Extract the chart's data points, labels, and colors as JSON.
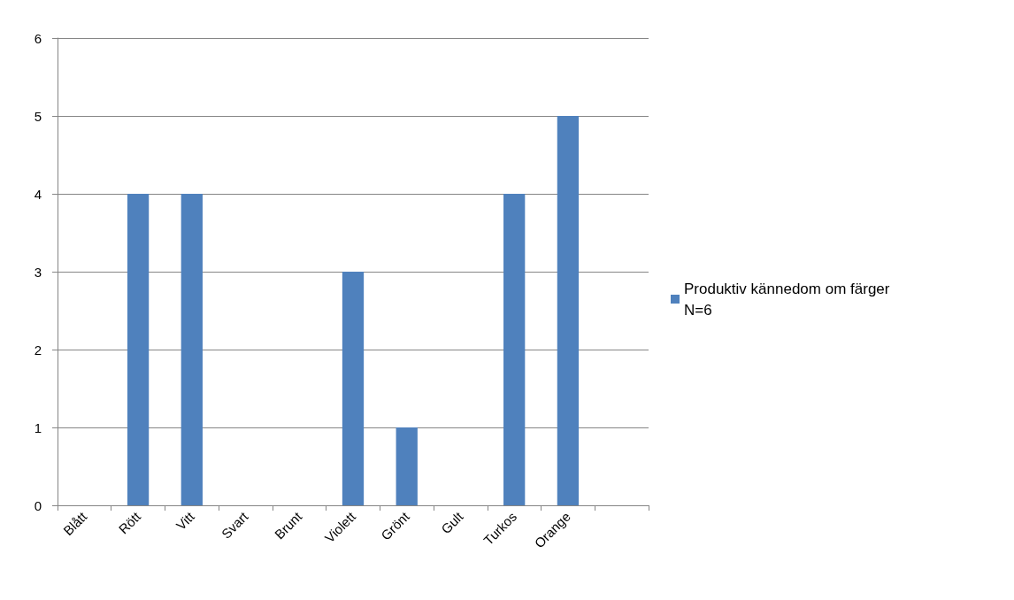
{
  "chart_data": {
    "type": "bar",
    "categories": [
      "Blått",
      "Rött",
      "Vitt",
      "Svart",
      "Brunt",
      "Violett",
      "Grönt",
      "Gult",
      "Turkos",
      "Orange",
      null
    ],
    "series": [
      {
        "name": "Produktiv kännedom om färger N=6",
        "color": "#4f81bd",
        "values": [
          0,
          4,
          4,
          0,
          0,
          3,
          1,
          0,
          4,
          5,
          null
        ]
      }
    ],
    "ylim": [
      0,
      6
    ],
    "yticks": [
      0,
      1,
      2,
      3,
      4,
      5,
      6
    ],
    "grid": "y",
    "legend": "right"
  }
}
